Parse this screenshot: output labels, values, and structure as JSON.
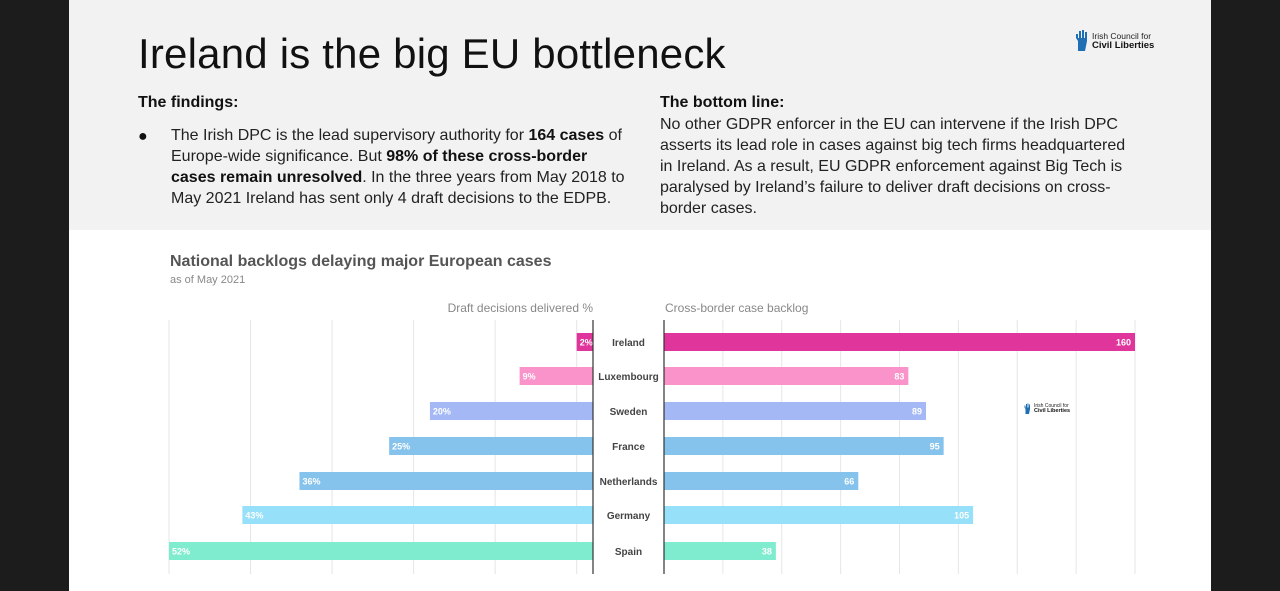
{
  "title": "Ireland is the big EU bottleneck",
  "logo": {
    "line1": "Irish Council for",
    "line2": "Civil Liberties"
  },
  "findings": {
    "heading": "The findings:",
    "bullet": "●",
    "t1": "The Irish DPC is the lead supervisory authority for ",
    "b1": "164 cases",
    "t2": " of Europe-wide significance. But ",
    "b2": "98% of these cross-border cases remain unresolved",
    "t3": ". In the three years from May 2018 to May 2021 Ireland has sent only 4 draft decisions to the EDPB."
  },
  "bottom_line": {
    "heading": "The bottom line:",
    "text": "No other GDPR enforcer in the EU can intervene if the Irish DPC asserts its lead role in cases against big tech firms headquartered in Ireland. As a result, EU GDPR enforcement against Big Tech is paralysed by Ireland’s failure to deliver draft decisions on cross-border cases."
  },
  "colors": {
    "ireland": "#e0359b",
    "luxembourg": "#f993c9",
    "sweden": "#a3b8f5",
    "france": "#86c3ec",
    "netherlands": "#86c3ec",
    "germany": "#96e0f9",
    "spain": "#7feccf"
  },
  "chart_data": {
    "type": "bar",
    "title": "National backlogs delaying major European cases",
    "subtitle": "as of May 2021",
    "categories": [
      "Ireland",
      "Luxembourg",
      "Sweden",
      "France",
      "Netherlands",
      "Germany",
      "Spain"
    ],
    "series": [
      {
        "name": "Draft decisions delivered %",
        "values": [
          2,
          9,
          20,
          25,
          36,
          43,
          52
        ],
        "labels": [
          "2%",
          "9%",
          "20%",
          "25%",
          "36%",
          "43%",
          "52%"
        ],
        "xlim": [
          0,
          52
        ]
      },
      {
        "name": "Cross-border case backlog",
        "values": [
          160,
          83,
          89,
          95,
          66,
          105,
          38
        ],
        "labels": [
          "160",
          "83",
          "89",
          "95",
          "66",
          "105",
          "38"
        ],
        "xlim": [
          0,
          160
        ]
      }
    ],
    "grid": true,
    "legend": "none"
  }
}
